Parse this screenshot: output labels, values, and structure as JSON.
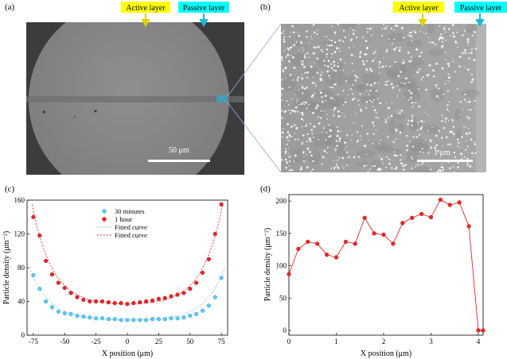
{
  "panels": {
    "a": {
      "label": "(a)",
      "active_layer": "Active layer",
      "passive_layer": "Passive layer",
      "scale_bar": "50 μm"
    },
    "b": {
      "label": "(b)",
      "active_layer": "Active layer",
      "passive_layer": "Passive layer",
      "scale_bar": "1 μm"
    },
    "c": {
      "label": "(c)"
    },
    "d": {
      "label": "(d)"
    }
  },
  "colors": {
    "active_tag": "#ffff00",
    "passive_tag": "#00ffff",
    "series_30min": "#5bc8f5",
    "series_1h": "#e8282a",
    "fit_30min": "#89c4e8",
    "fit_1h": "#e8282a",
    "line_d": "#e8282a",
    "zoom_lines": "#8faadc"
  },
  "chart_data": [
    {
      "type": "scatter",
      "title": "",
      "xlabel": "X position (μm)",
      "ylabel": "Particle density (μm⁻²)",
      "xlim": [
        -80,
        80
      ],
      "ylim": [
        0,
        160
      ],
      "xticks": [
        -75,
        -50,
        -25,
        0,
        25,
        50,
        75
      ],
      "yticks": [
        0,
        40,
        80,
        120,
        160
      ],
      "legend_position": "top-center",
      "legend": [
        "30 minutes",
        "1 hour",
        "Fitted curve",
        "Fitted curve"
      ],
      "series": [
        {
          "name": "30 minutes",
          "x": [
            -75,
            -70,
            -65,
            -60,
            -55,
            -50,
            -45,
            -40,
            -35,
            -30,
            -25,
            -20,
            -15,
            -10,
            -5,
            0,
            5,
            10,
            15,
            20,
            25,
            30,
            35,
            40,
            45,
            50,
            55,
            60,
            65,
            70,
            75
          ],
          "y": [
            71,
            55,
            40,
            33,
            28,
            26,
            25,
            23,
            22,
            21,
            20,
            20,
            19,
            19,
            18,
            18,
            18,
            18,
            18,
            19,
            19,
            19,
            20,
            20,
            21,
            23,
            25,
            29,
            35,
            45,
            68
          ]
        },
        {
          "name": "1 hour",
          "x": [
            -75,
            -70,
            -65,
            -60,
            -55,
            -50,
            -45,
            -40,
            -35,
            -30,
            -25,
            -20,
            -15,
            -10,
            -5,
            0,
            5,
            10,
            15,
            20,
            25,
            30,
            35,
            40,
            45,
            50,
            55,
            60,
            65,
            70,
            75
          ],
          "y": [
            140,
            118,
            88,
            72,
            62,
            56,
            50,
            45,
            42,
            40,
            40,
            40,
            39,
            38,
            38,
            37,
            38,
            39,
            40,
            41,
            43,
            44,
            46,
            48,
            50,
            55,
            62,
            74,
            90,
            120,
            155
          ]
        }
      ],
      "fits": [
        {
          "name": "Fitted curve",
          "for": "30 minutes"
        },
        {
          "name": "Fitted curve",
          "for": "1 hour"
        }
      ]
    },
    {
      "type": "line",
      "title": "",
      "xlabel": "X position (μm)",
      "ylabel": "Particle density (μm⁻²)",
      "xlim": [
        0,
        4.1
      ],
      "ylim": [
        0,
        210
      ],
      "xticks": [
        0,
        1,
        2,
        3,
        4
      ],
      "yticks": [
        0,
        50,
        100,
        150,
        200
      ],
      "series": [
        {
          "name": "density",
          "x": [
            0,
            0.2,
            0.4,
            0.6,
            0.8,
            1.0,
            1.2,
            1.4,
            1.6,
            1.8,
            2.0,
            2.2,
            2.4,
            2.6,
            2.8,
            3.0,
            3.2,
            3.4,
            3.6,
            3.8,
            4.0,
            4.1
          ],
          "y": [
            87,
            126,
            137,
            134,
            117,
            113,
            137,
            134,
            174,
            150,
            148,
            134,
            166,
            174,
            180,
            175,
            202,
            194,
            198,
            161,
            0,
            0
          ]
        }
      ]
    }
  ]
}
